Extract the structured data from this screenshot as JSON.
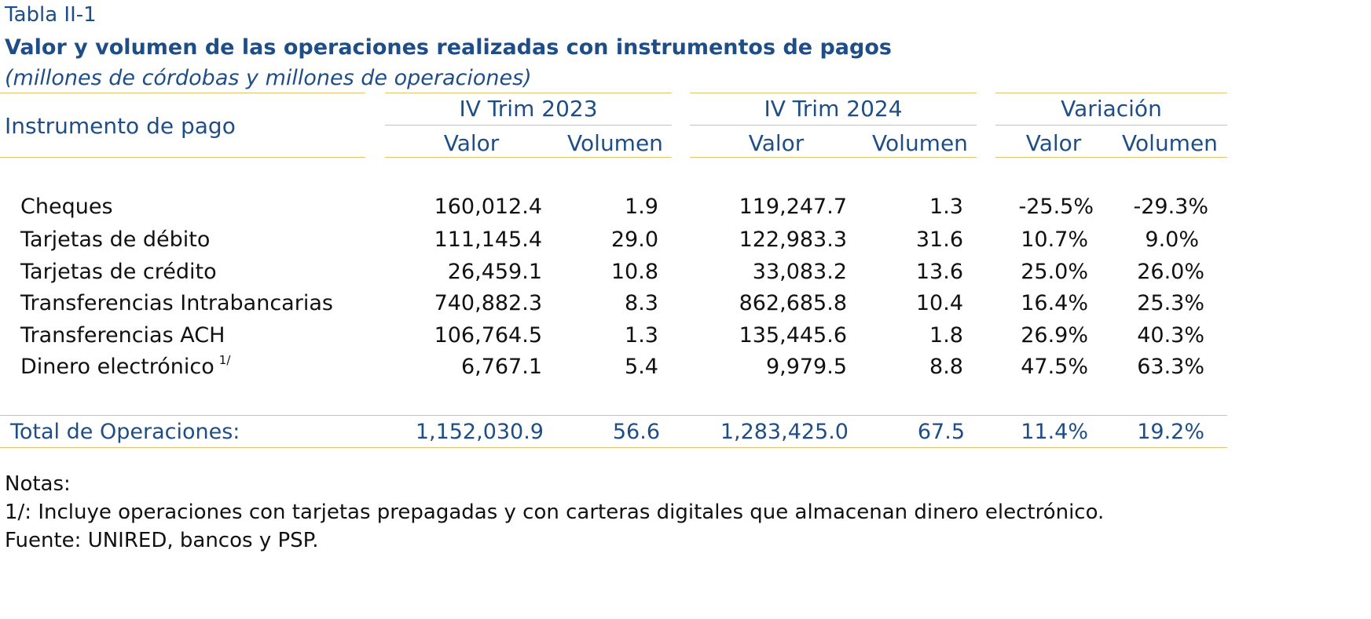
{
  "table": {
    "label": "Tabla II-1",
    "title": "Valor y volumen de las operaciones realizadas con instrumentos de pagos",
    "subtitle": "(millones de córdobas y millones de operaciones)",
    "header": {
      "instrument_label": "Instrumento de pago",
      "groups": [
        "IV Trim 2023",
        "IV Trim 2024",
        "Variación"
      ],
      "subcolumns": [
        "Valor",
        "Volumen",
        "Valor",
        "Volumen",
        "Valor",
        "Volumen"
      ]
    },
    "rows": [
      {
        "label": "Cheques",
        "footnote": "",
        "values": [
          "160,012.4",
          "1.9",
          "119,247.7",
          "1.3",
          "-25.5%",
          "-29.3%"
        ]
      },
      {
        "label": "Tarjetas de débito",
        "footnote": "",
        "values": [
          "111,145.4",
          "29.0",
          "122,983.3",
          "31.6",
          "10.7%",
          "9.0%"
        ]
      },
      {
        "label": "Tarjetas de crédito",
        "footnote": "",
        "values": [
          "26,459.1",
          "10.8",
          "33,083.2",
          "13.6",
          "25.0%",
          "26.0%"
        ]
      },
      {
        "label": "Transferencias Intrabancarias",
        "footnote": "",
        "values": [
          "740,882.3",
          "8.3",
          "862,685.8",
          "10.4",
          "16.4%",
          "25.3%"
        ]
      },
      {
        "label": "Transferencias ACH",
        "footnote": "",
        "values": [
          "106,764.5",
          "1.3",
          "135,445.6",
          "1.8",
          "26.9%",
          "40.3%"
        ]
      },
      {
        "label": "Dinero electrónico",
        "footnote": "1/",
        "values": [
          "6,767.1",
          "5.4",
          "9,979.5",
          "8.8",
          "47.5%",
          "63.3%"
        ]
      }
    ],
    "total": {
      "label": "Total de Operaciones:",
      "values": [
        "1,152,030.9",
        "56.6",
        "1,283,425.0",
        "67.5",
        "11.4%",
        "19.2%"
      ]
    }
  },
  "notes": {
    "heading": "Notas:",
    "footnote": "1/: Incluye operaciones con tarjetas prepagadas y con carteras digitales que almacenan dinero electrónico.",
    "source": "Fuente: UNIRED, bancos y PSP."
  },
  "colors": {
    "header_blue": "#1f4e86",
    "rule_gold": "#e3c36e"
  }
}
